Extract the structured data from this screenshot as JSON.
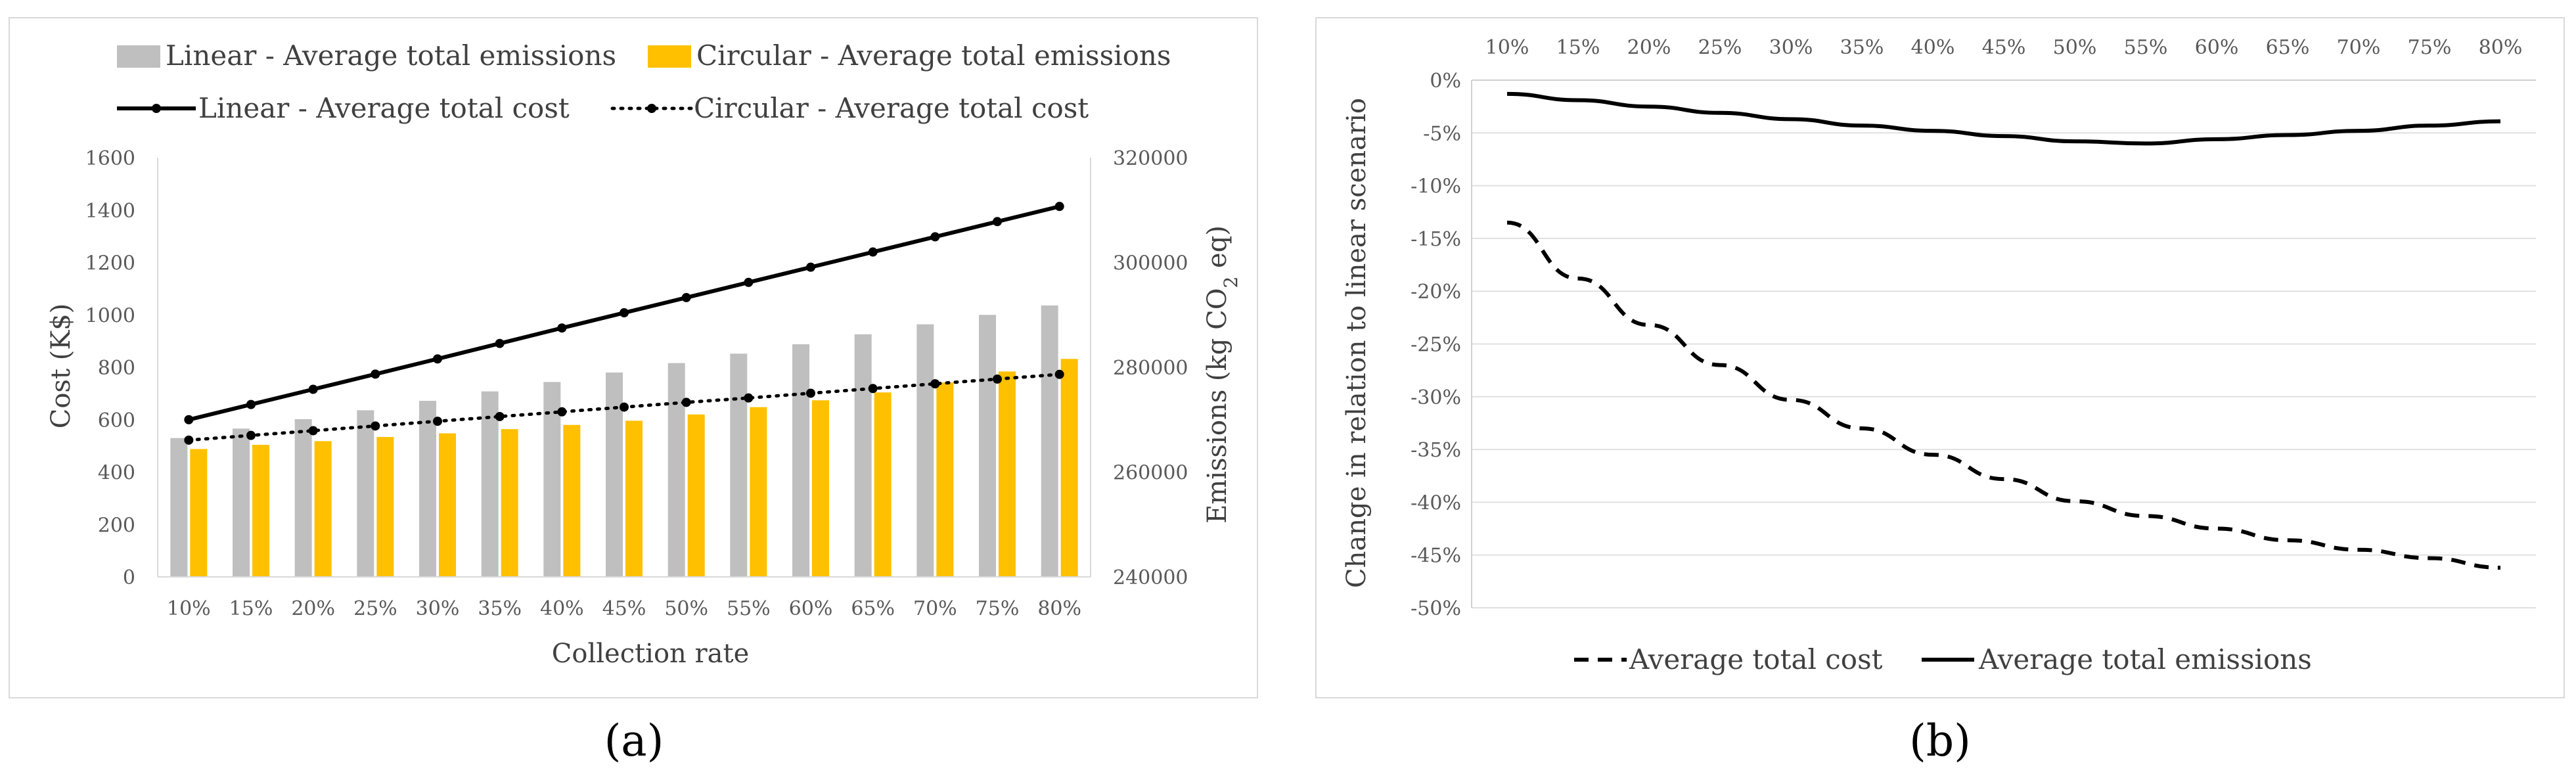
{
  "chart_data": [
    {
      "panel": "a",
      "type": "bar+line",
      "title": "",
      "xlabel": "Collection rate",
      "ylabel": "Cost (K$)",
      "y2label": "Emissions (kg CO2 eq)",
      "y2label_parts": {
        "main": "Emissions (kg CO",
        "sub": "2",
        "tail": " eq)"
      },
      "categories": [
        "10%",
        "15%",
        "20%",
        "25%",
        "30%",
        "35%",
        "40%",
        "45%",
        "50%",
        "55%",
        "60%",
        "65%",
        "70%",
        "75%",
        "80%"
      ],
      "ylim": [
        0,
        1600
      ],
      "yticks": [
        "0",
        "200",
        "400",
        "600",
        "800",
        "1000",
        "1200",
        "1400",
        "1600"
      ],
      "y2lim": [
        240000,
        320000
      ],
      "y2ticks": [
        "240000",
        "260000",
        "280000",
        "300000",
        "320000"
      ],
      "bar_series": [
        {
          "name": "Linear - Average total emissions",
          "axis": "right",
          "color": "#bfbfbf",
          "values": [
            266500,
            268300,
            270100,
            271800,
            273600,
            275400,
            277200,
            279000,
            280800,
            282600,
            284400,
            286300,
            288200,
            290000,
            291800
          ]
        },
        {
          "name": "Circular - Average total emissions",
          "axis": "right",
          "color": "#ffc000",
          "values": [
            264400,
            265200,
            265900,
            266700,
            267400,
            268200,
            269000,
            269800,
            271000,
            272400,
            273700,
            275200,
            277100,
            279200,
            281600
          ]
        }
      ],
      "line_series": [
        {
          "name": "Linear - Average total cost",
          "axis": "left",
          "style": "solid",
          "values": [
            600,
            658,
            716,
            774,
            832,
            891,
            950,
            1008,
            1066,
            1124,
            1182,
            1240,
            1298,
            1356,
            1414
          ]
        },
        {
          "name": "Circular - Average total cost",
          "axis": "left",
          "style": "dotted",
          "values": [
            522,
            540,
            558,
            576,
            594,
            612,
            630,
            648,
            666,
            683,
            701,
            719,
            737,
            755,
            773
          ]
        }
      ],
      "legend_position": "top"
    },
    {
      "panel": "b",
      "type": "line",
      "title": "",
      "xlabel": "",
      "ylabel": "Change in relation to linear scenario",
      "categories": [
        "10%",
        "15%",
        "20%",
        "25%",
        "30%",
        "35%",
        "40%",
        "45%",
        "50%",
        "55%",
        "60%",
        "65%",
        "70%",
        "75%",
        "80%"
      ],
      "ylim": [
        -50,
        0
      ],
      "yticks": [
        "0%",
        "-5%",
        "-10%",
        "-15%",
        "-20%",
        "-25%",
        "-30%",
        "-35%",
        "-40%",
        "-45%",
        "-50%"
      ],
      "series": [
        {
          "name": "Average total cost",
          "style": "dashed",
          "values": [
            -13.5,
            -18.8,
            -23.2,
            -27.0,
            -30.3,
            -33.0,
            -35.5,
            -37.8,
            -39.9,
            -41.3,
            -42.5,
            -43.6,
            -44.5,
            -45.3,
            -46.2
          ]
        },
        {
          "name": "Average total emissions",
          "style": "solid",
          "values": [
            -1.3,
            -1.9,
            -2.5,
            -3.1,
            -3.7,
            -4.3,
            -4.8,
            -5.3,
            -5.8,
            -6.0,
            -5.6,
            -5.2,
            -4.8,
            -4.3,
            -3.9
          ]
        }
      ],
      "legend_position": "bottom"
    }
  ],
  "labels": {
    "panel_a": "(a)",
    "panel_b": "(b)"
  }
}
